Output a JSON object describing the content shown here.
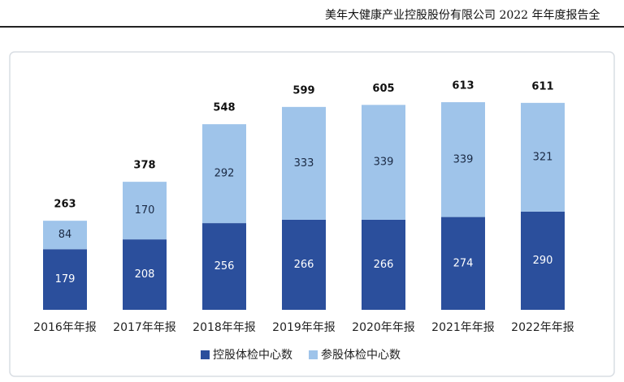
{
  "header": {
    "title": "美年大健康产业控股股份有限公司 2022 年年度报告全"
  },
  "chart_data": {
    "type": "stacked_bar",
    "categories": [
      "2016年年报",
      "2017年年报",
      "2018年年报",
      "2019年年报",
      "2020年年报",
      "2021年年报",
      "2022年年报"
    ],
    "series": [
      {
        "name": "控股体检中心数",
        "color": "#2b4f9c",
        "values": [
          179,
          208,
          256,
          266,
          266,
          274,
          290
        ]
      },
      {
        "name": "参股体检中心数",
        "color": "#9fc4ea",
        "values": [
          84,
          170,
          292,
          333,
          339,
          339,
          321
        ]
      }
    ],
    "totals": [
      263,
      378,
      548,
      599,
      605,
      613,
      611
    ],
    "legend": "bottom"
  }
}
